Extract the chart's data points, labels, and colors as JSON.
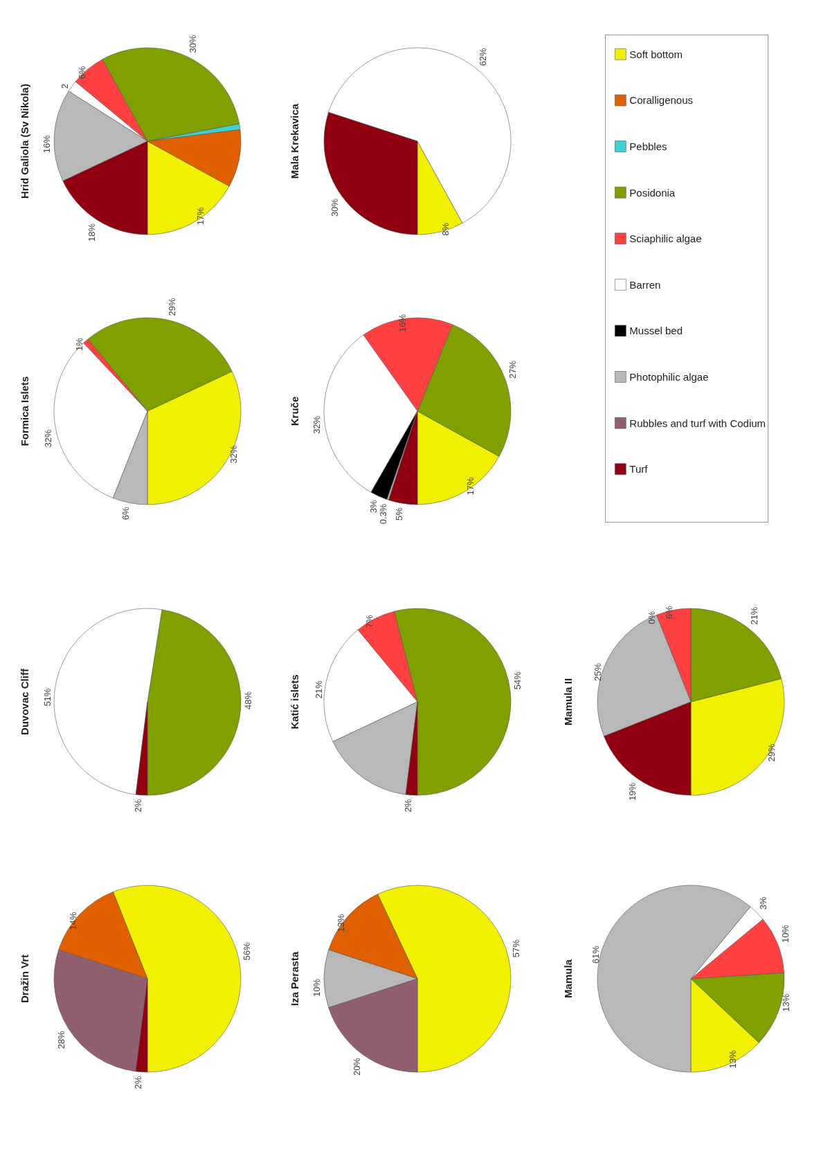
{
  "chart_data": {
    "type": "pie",
    "legend": "top right",
    "data_labels": false,
    "categories": [
      "Soft bottom",
      "Coralligenous",
      "Pebbles",
      "Posidonia",
      "Sciaphilic algae",
      "Barren",
      "Mussel bed",
      "Photophilic algae",
      "Rubbles and turf with Codium",
      "Turf"
    ],
    "colors": [
      "#f0f000",
      "#e06000",
      "#40d0d0",
      "#80a000",
      "#ff4040",
      "#ffffff",
      "#000000",
      "#b8b8b8",
      "#906070",
      "#900010"
    ],
    "series": [
      {
        "name": "Dražin Vrt",
        "values": [
          56,
          14,
          null,
          null,
          null,
          null,
          null,
          null,
          28,
          2
        ],
        "value_labels": [
          "56%",
          "14%",
          null,
          null,
          null,
          null,
          null,
          null,
          "28%",
          "2%"
        ]
      },
      {
        "name": "Duvovac Cliff",
        "values": [
          null,
          null,
          null,
          48,
          null,
          51,
          null,
          null,
          null,
          2
        ],
        "value_labels": [
          null,
          null,
          null,
          "48%",
          null,
          "51%",
          null,
          null,
          null,
          "2%"
        ]
      },
      {
        "name": "Formica Islets",
        "values": [
          32,
          null,
          null,
          29,
          1,
          32,
          null,
          6,
          null,
          null
        ],
        "value_labels": [
          "32%",
          null,
          null,
          "29%",
          "1%",
          "32%",
          null,
          "6%",
          null,
          null
        ]
      },
      {
        "name": "Hrid Galiola (Sv Nikola)",
        "values": [
          17,
          10,
          1,
          30,
          6,
          2,
          null,
          16,
          null,
          18
        ],
        "value_labels": [
          "17%",
          null,
          null,
          "30%",
          "6%",
          "2",
          null,
          "16%",
          null,
          "18%"
        ]
      },
      {
        "name": "Iza Perasta",
        "values": [
          57,
          13,
          null,
          null,
          null,
          null,
          null,
          10,
          20,
          null
        ],
        "value_labels": [
          "57%",
          "13%",
          null,
          null,
          null,
          null,
          null,
          "10%",
          "20%",
          null
        ]
      },
      {
        "name": "Katić islets",
        "values": [
          null,
          null,
          null,
          54,
          7,
          21,
          null,
          16,
          null,
          2
        ],
        "value_labels": [
          null,
          null,
          null,
          "54%",
          "7%",
          "21%",
          null,
          null,
          null,
          "2%"
        ]
      },
      {
        "name": "Kruče",
        "values": [
          17,
          null,
          null,
          27,
          16,
          32,
          3,
          0.3,
          null,
          5
        ],
        "value_labels": [
          "17%",
          null,
          null,
          "27%",
          "16%",
          "32%",
          "3%",
          "0.3%",
          null,
          "5%"
        ]
      },
      {
        "name": "Mala Krekavica",
        "values": [
          8,
          null,
          null,
          null,
          null,
          62,
          null,
          null,
          null,
          30
        ],
        "value_labels": [
          "8%",
          null,
          null,
          null,
          null,
          "62%",
          null,
          null,
          null,
          "30%"
        ]
      },
      {
        "name": "Mamula",
        "values": [
          13,
          null,
          null,
          13,
          10,
          3,
          null,
          61,
          null,
          null
        ],
        "value_labels": [
          "13%",
          null,
          null,
          "13%",
          "10%",
          "3%",
          null,
          "61%",
          null,
          null
        ]
      },
      {
        "name": "Mamula II",
        "values": [
          29,
          null,
          null,
          21,
          6,
          0,
          null,
          25,
          null,
          19
        ],
        "value_labels": [
          "29%",
          null,
          null,
          "21%",
          "6%",
          "0%",
          null,
          "25%",
          null,
          "19%"
        ]
      }
    ]
  }
}
